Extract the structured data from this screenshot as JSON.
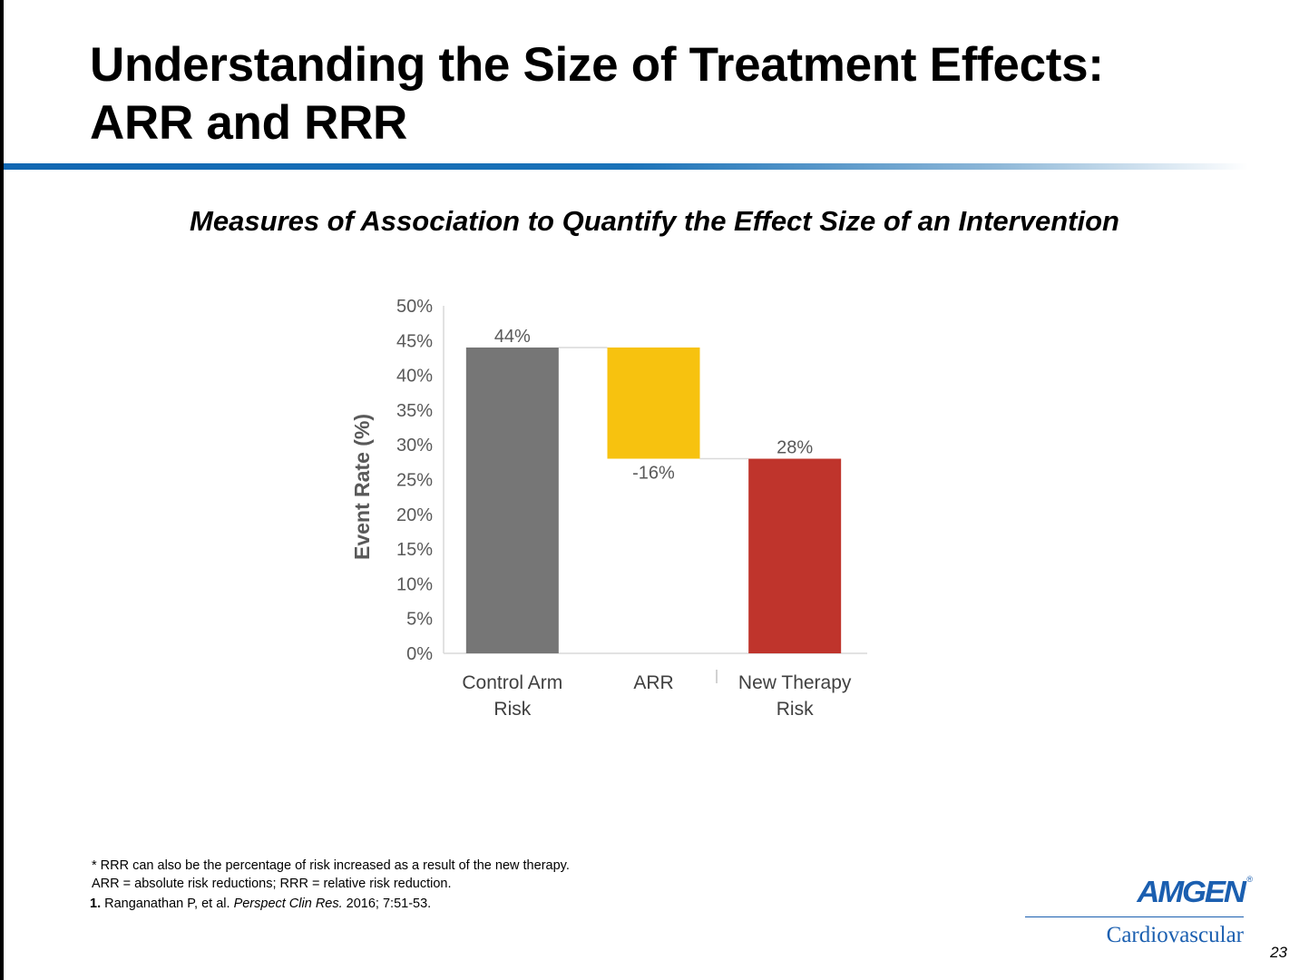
{
  "slide": {
    "title_line1": "Understanding the Size of Treatment Effects:",
    "title_line2": "ARR and RRR",
    "subtitle": "Measures of Association to Quantify the Effect Size of an Intervention",
    "rule_color": "#1167b2"
  },
  "chart_data": {
    "type": "bar",
    "style": "waterfall",
    "ylabel": "Event Rate (%)",
    "ylim": [
      0,
      50
    ],
    "y_ticks": [
      "0%",
      "5%",
      "10%",
      "15%",
      "20%",
      "25%",
      "30%",
      "35%",
      "40%",
      "45%",
      "50%"
    ],
    "categories": [
      {
        "line1": "Control Arm",
        "line2": "Risk"
      },
      {
        "line1": "ARR",
        "line2": ""
      },
      {
        "line1": "New Therapy",
        "line2": "Risk"
      }
    ],
    "bars": [
      {
        "base": 0,
        "top": 44,
        "label": "44%",
        "label_position": "above",
        "color": "#767676"
      },
      {
        "base": 28,
        "top": 44,
        "label": "-16%",
        "label_position": "below",
        "color": "#f7c20f"
      },
      {
        "base": 0,
        "top": 28,
        "label": "28%",
        "label_position": "above",
        "color": "#bf342c"
      }
    ],
    "connectors": [
      44,
      28
    ],
    "grid": false,
    "legend": "none"
  },
  "footnotes": {
    "line1": "* RRR can also be the percentage of risk increased as a result of the new therapy.",
    "line2": "ARR = absolute risk reductions; RRR = relative risk reduction."
  },
  "reference": {
    "number": "1.",
    "authors": "Ranganathan P, et al.",
    "journal": "Perspect Clin Res.",
    "details": "2016; 7:51-53."
  },
  "logo": {
    "brand": "AMGEN",
    "registered": "®",
    "division": "Cardiovascular",
    "color": "#1b5fb0"
  },
  "page_number": "23"
}
